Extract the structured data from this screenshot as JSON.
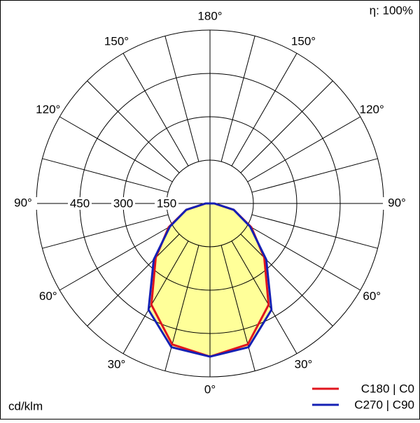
{
  "chart_data": {
    "type": "polar",
    "corner_label": "η: 100%",
    "unit_label": "cd/klm",
    "angles": [
      -180,
      -165,
      -150,
      -135,
      -120,
      -105,
      -90,
      -75,
      -60,
      -45,
      -30,
      -15,
      0,
      15,
      30,
      45,
      60,
      75,
      90,
      105,
      120,
      135,
      150,
      165,
      180
    ],
    "series": [
      {
        "name": "C180 | C0",
        "color": "#e0141e",
        "values": [
          0,
          0,
          0,
          0,
          0,
          0,
          15,
          85,
          165,
          265,
          405,
          505,
          530,
          505,
          405,
          265,
          165,
          85,
          15,
          0,
          0,
          0,
          0,
          0,
          0
        ]
      },
      {
        "name": "C270 | C90",
        "color": "#1420b4",
        "values": [
          0,
          0,
          0,
          0,
          0,
          0,
          15,
          85,
          160,
          275,
          425,
          515,
          530,
          515,
          425,
          275,
          160,
          85,
          15,
          0,
          0,
          0,
          0,
          0,
          0
        ]
      }
    ],
    "fill_color": "#ffff99",
    "rlim": [
      0,
      600
    ],
    "rticks": [
      150,
      300,
      450
    ],
    "angle_ticks": [
      {
        "value": -150,
        "label": "150°"
      },
      {
        "value": -120,
        "label": "120°"
      },
      {
        "value": -90,
        "label": "90°"
      },
      {
        "value": -60,
        "label": "60°"
      },
      {
        "value": -30,
        "label": "30°"
      },
      {
        "value": 0,
        "label": "0°"
      },
      {
        "value": 30,
        "label": "30°"
      },
      {
        "value": 60,
        "label": "60°"
      },
      {
        "value": 90,
        "label": "90°"
      },
      {
        "value": 120,
        "label": "120°"
      },
      {
        "value": 150,
        "label": "150°"
      },
      {
        "value": 180,
        "label": "180°"
      }
    ],
    "legend": "bottom-right"
  }
}
